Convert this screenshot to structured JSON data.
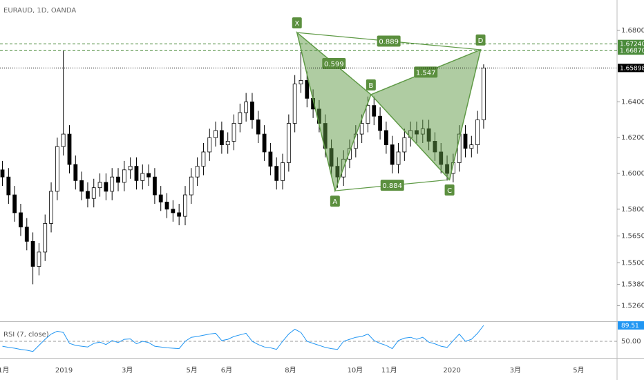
{
  "chart_data": [
    {
      "type": "candlestick",
      "title": "EURAUD, 1D, OANDA",
      "xlim": [
        -0.4,
        100.9
      ],
      "xticks": [
        {
          "value": 0.2,
          "label": "1月"
        },
        {
          "value": 10.1,
          "label": "2019"
        },
        {
          "value": 20.5,
          "label": "3月"
        },
        {
          "value": 31.1,
          "label": "5月"
        },
        {
          "value": 36.8,
          "label": "6月"
        },
        {
          "value": 47.3,
          "label": "8月"
        },
        {
          "value": 57.9,
          "label": "10月"
        },
        {
          "value": 63.5,
          "label": "11月"
        },
        {
          "value": 73.8,
          "label": "2020"
        },
        {
          "value": 84.2,
          "label": "3月"
        },
        {
          "value": 94.6,
          "label": "5月"
        }
      ],
      "ylim": [
        1.5173,
        1.697
      ],
      "yticks": [
        {
          "value": 1.68,
          "label": "1.68000"
        },
        {
          "value": 1.64,
          "label": "1.64000"
        },
        {
          "value": 1.62,
          "label": "1.62000"
        },
        {
          "value": 1.6,
          "label": "1.60000"
        },
        {
          "value": 1.58,
          "label": "1.58000"
        },
        {
          "value": 1.565,
          "label": "1.56500"
        },
        {
          "value": 1.55,
          "label": "1.55000"
        },
        {
          "value": 1.538,
          "label": "1.53800"
        },
        {
          "value": 1.526,
          "label": "1.52600"
        }
      ],
      "up_color": "#ffffff",
      "down_color": "#000000",
      "open": [
        1.602,
        1.598,
        1.588,
        1.578,
        1.57,
        1.562,
        1.548,
        1.556,
        1.572,
        1.59,
        1.615,
        1.622,
        1.605,
        1.596,
        1.59,
        1.586,
        1.592,
        1.595,
        1.59,
        1.598,
        1.595,
        1.602,
        1.604,
        1.596,
        1.6,
        1.598,
        1.588,
        1.584,
        1.58,
        1.578,
        1.576,
        1.588,
        1.598,
        1.604,
        1.612,
        1.62,
        1.624,
        1.616,
        1.618,
        1.628,
        1.634,
        1.64,
        1.63,
        1.622,
        1.612,
        1.604,
        1.596,
        1.606,
        1.628,
        1.65,
        1.652,
        1.642,
        1.636,
        1.628,
        1.614,
        1.604,
        1.598,
        1.608,
        1.614,
        1.622,
        1.628,
        1.638,
        1.632,
        1.624,
        1.616,
        1.605,
        1.612,
        1.62,
        1.624,
        1.622,
        1.625,
        1.618,
        1.612,
        1.605,
        1.6,
        1.606,
        1.622,
        1.614,
        1.616,
        1.63
      ],
      "high": [
        1.607,
        1.603,
        1.593,
        1.583,
        1.575,
        1.567,
        1.561,
        1.577,
        1.595,
        1.62,
        1.6687,
        1.627,
        1.61,
        1.601,
        1.595,
        1.597,
        1.6,
        1.6,
        1.603,
        1.603,
        1.607,
        1.609,
        1.609,
        1.605,
        1.605,
        1.603,
        1.593,
        1.589,
        1.585,
        1.583,
        1.593,
        1.603,
        1.609,
        1.617,
        1.625,
        1.629,
        1.629,
        1.623,
        1.633,
        1.639,
        1.645,
        1.645,
        1.635,
        1.627,
        1.617,
        1.609,
        1.611,
        1.633,
        1.655,
        1.668,
        1.657,
        1.647,
        1.641,
        1.633,
        1.619,
        1.609,
        1.613,
        1.619,
        1.627,
        1.633,
        1.643,
        1.643,
        1.637,
        1.629,
        1.621,
        1.617,
        1.625,
        1.629,
        1.629,
        1.63,
        1.63,
        1.623,
        1.617,
        1.61,
        1.611,
        1.627,
        1.627,
        1.621,
        1.635,
        1.661
      ],
      "low": [
        1.593,
        1.583,
        1.573,
        1.565,
        1.557,
        1.538,
        1.543,
        1.551,
        1.567,
        1.585,
        1.61,
        1.6,
        1.591,
        1.585,
        1.581,
        1.581,
        1.587,
        1.585,
        1.585,
        1.59,
        1.59,
        1.597,
        1.591,
        1.591,
        1.593,
        1.583,
        1.579,
        1.575,
        1.573,
        1.571,
        1.571,
        1.583,
        1.593,
        1.599,
        1.607,
        1.615,
        1.611,
        1.611,
        1.613,
        1.623,
        1.629,
        1.625,
        1.617,
        1.607,
        1.599,
        1.591,
        1.591,
        1.601,
        1.623,
        1.645,
        1.637,
        1.631,
        1.623,
        1.609,
        1.599,
        1.592,
        1.593,
        1.603,
        1.609,
        1.617,
        1.623,
        1.627,
        1.619,
        1.611,
        1.6,
        1.6,
        1.607,
        1.615,
        1.617,
        1.617,
        1.613,
        1.607,
        1.6,
        1.596,
        1.595,
        1.601,
        1.609,
        1.609,
        1.611,
        1.625
      ],
      "close": [
        1.598,
        1.588,
        1.578,
        1.57,
        1.562,
        1.548,
        1.556,
        1.572,
        1.59,
        1.615,
        1.622,
        1.605,
        1.596,
        1.59,
        1.586,
        1.592,
        1.595,
        1.59,
        1.598,
        1.595,
        1.602,
        1.604,
        1.596,
        1.6,
        1.598,
        1.588,
        1.584,
        1.58,
        1.578,
        1.576,
        1.588,
        1.598,
        1.604,
        1.612,
        1.62,
        1.624,
        1.616,
        1.618,
        1.628,
        1.634,
        1.64,
        1.63,
        1.622,
        1.612,
        1.604,
        1.596,
        1.606,
        1.628,
        1.65,
        1.652,
        1.642,
        1.636,
        1.628,
        1.614,
        1.604,
        1.598,
        1.608,
        1.614,
        1.622,
        1.628,
        1.638,
        1.632,
        1.624,
        1.616,
        1.605,
        1.612,
        1.62,
        1.624,
        1.622,
        1.625,
        1.618,
        1.612,
        1.605,
        1.6,
        1.606,
        1.622,
        1.614,
        1.616,
        1.63,
        1.65898
      ],
      "price_lines": [
        {
          "value": 1.6724,
          "label": "1.67240",
          "color": "#4a8a3a"
        },
        {
          "value": 1.6687,
          "label": "1.66870",
          "color": "#4a8a3a"
        }
      ],
      "pattern": {
        "color": "#5f9a46",
        "points": [
          {
            "label": "X",
            "x": 48.35,
            "y": 1.6788
          },
          {
            "label": "A",
            "x": 54.6,
            "y": 1.5903
          },
          {
            "label": "B",
            "x": 60.5,
            "y": 1.6441
          },
          {
            "label": "C",
            "x": 73.4,
            "y": 1.5965
          },
          {
            "label": "D",
            "x": 78.5,
            "y": 1.6692
          }
        ],
        "ratios": [
          0.599,
          1.547,
          0.884,
          0.889
        ]
      }
    },
    {
      "type": "line",
      "name": "RSI (7, close)",
      "color": "#2196f3",
      "ylim": [
        9,
        98
      ],
      "yticks": [
        {
          "value": 50,
          "label": "50.00"
        }
      ],
      "values": [
        38,
        35,
        33,
        30,
        28,
        25,
        40,
        55,
        68,
        75,
        72,
        45,
        40,
        38,
        36,
        45,
        48,
        42,
        52,
        47,
        55,
        56,
        44,
        50,
        47,
        38,
        36,
        34,
        33,
        32,
        50,
        60,
        62,
        65,
        68,
        70,
        52,
        55,
        62,
        66,
        70,
        50,
        42,
        36,
        34,
        30,
        50,
        68,
        80,
        72,
        50,
        45,
        40,
        35,
        32,
        30,
        50,
        55,
        60,
        62,
        68,
        52,
        45,
        40,
        32,
        52,
        58,
        60,
        55,
        60,
        48,
        44,
        38,
        35,
        52,
        68,
        50,
        55,
        70,
        89.51
      ]
    }
  ]
}
